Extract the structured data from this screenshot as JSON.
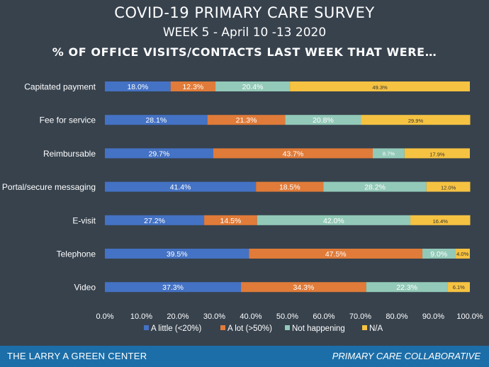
{
  "header": {
    "title": "COVID-19 PRIMARY CARE SURVEY",
    "subtitle": "WEEK 5 - April 10 -13 2020",
    "question": "% OF OFFICE VISITS/CONTACTS LAST WEEK THAT WERE…"
  },
  "footer": {
    "left": "THE LARRY A GREEN CENTER",
    "right": "PRIMARY CARE COLLABORATIVE"
  },
  "chart_data": {
    "type": "bar",
    "orientation": "horizontal",
    "stacked": true,
    "categories": [
      "Capitated payment",
      "Fee for service",
      "Reimbursable",
      "Portal/secure messaging",
      "E-visit",
      "Telephone",
      "Video"
    ],
    "series": [
      {
        "name": "A little (<20%)",
        "color": "#4472c4",
        "values": [
          18.0,
          28.1,
          29.7,
          41.4,
          27.2,
          39.5,
          37.3
        ]
      },
      {
        "name": "A lot (>50%)",
        "color": "#e07b39",
        "values": [
          12.3,
          21.3,
          43.7,
          18.5,
          14.5,
          47.5,
          34.3
        ]
      },
      {
        "name": "Not happening",
        "color": "#93c9b8",
        "values": [
          20.4,
          20.8,
          8.7,
          28.2,
          42.0,
          9.0,
          22.3
        ]
      },
      {
        "name": "N/A",
        "color": "#f5c242",
        "values": [
          49.3,
          29.9,
          17.9,
          12.0,
          16.4,
          4.0,
          6.1
        ]
      }
    ],
    "data_labels": [
      [
        "18.0%",
        "28.1%",
        "29.7%",
        "41.4%",
        "27.2%",
        "39.5%",
        "37.3%"
      ],
      [
        "12.3%",
        "21.3%",
        "43.7%",
        "18.5%",
        "14.5%",
        "47.5%",
        "34.3%"
      ],
      [
        "20.4%",
        "20.8%",
        "8.7%",
        "28.2%",
        "42.0%",
        "9.0%",
        "22.3%"
      ],
      [
        "49.3%",
        "29.9%",
        "17.9%",
        "12.0%",
        "16.4%",
        "4.0%",
        "6.1%"
      ]
    ],
    "x_ticks": [
      "0.0%",
      "10.0%",
      "20.0%",
      "30.0%",
      "40.0%",
      "50.0%",
      "60.0%",
      "70.0%",
      "80.0%",
      "90.0%",
      "100.0%"
    ],
    "xlim": [
      0,
      100
    ],
    "grid": false,
    "legend_position": "bottom"
  }
}
